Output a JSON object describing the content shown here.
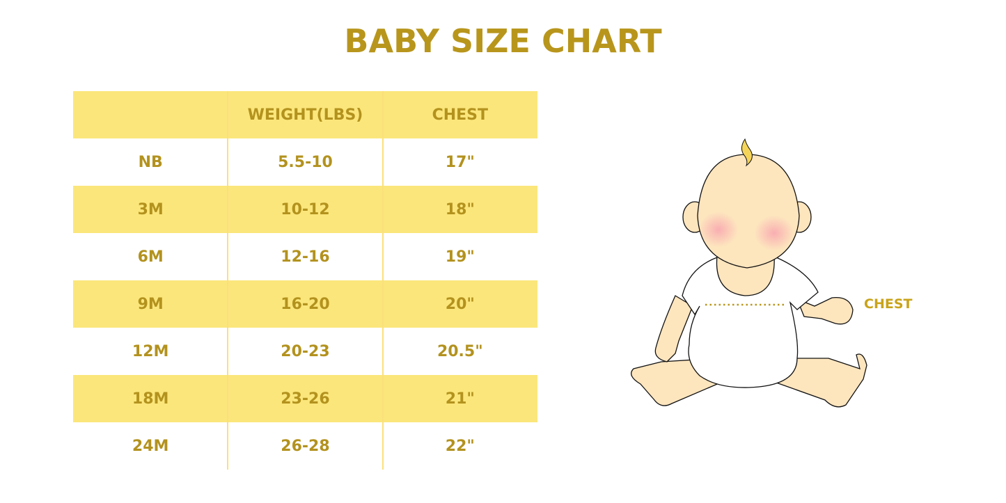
{
  "title": "BABY SIZE CHART",
  "table": {
    "headers": [
      "",
      "WEIGHT(LBS)",
      "CHEST"
    ],
    "rows": [
      [
        "NB",
        "5.5-10",
        "17\""
      ],
      [
        "3M",
        "10-12",
        "18\""
      ],
      [
        "6M",
        "12-16",
        "19\""
      ],
      [
        "9M",
        "16-20",
        "20\""
      ],
      [
        "12M",
        "20-23",
        "20.5\""
      ],
      [
        "18M",
        "23-26",
        "21\""
      ],
      [
        "24M",
        "26-28",
        "22\""
      ]
    ]
  },
  "illustration": {
    "chest_label": "CHEST"
  },
  "colors": {
    "accent_text": "#B3921E",
    "stripe": "#FBE67B",
    "skin": "#FDE5BE",
    "hair": "#F5D45A"
  }
}
